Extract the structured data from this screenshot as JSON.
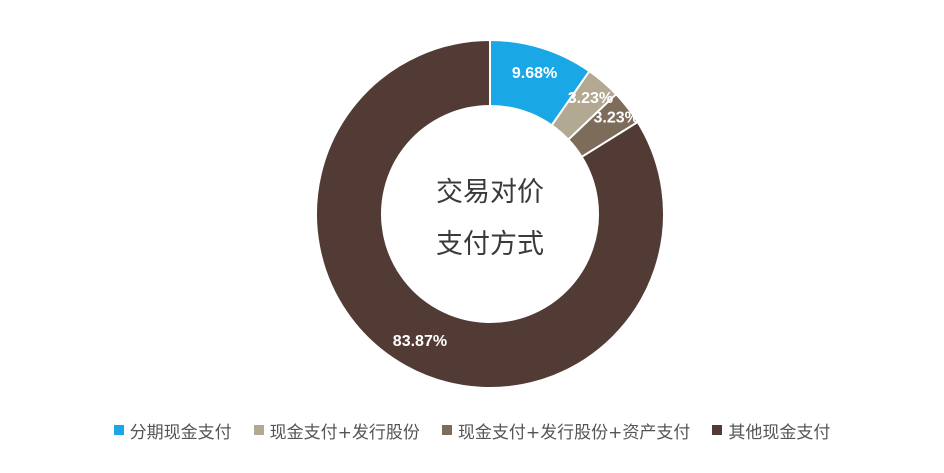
{
  "chart_data": {
    "type": "pie",
    "donut": true,
    "center_text": [
      "交易对价",
      "支付方式"
    ],
    "series": [
      {
        "name": "分期现金支付",
        "value": 9.68,
        "label": "9.68%",
        "color": "#1aa7e6"
      },
      {
        "name": "现金支付+发行股份",
        "value": 3.23,
        "label": "3.23%",
        "color": "#b3a891"
      },
      {
        "name": "现金支付+发行股份+资产支付",
        "value": 3.23,
        "label": "3.23%",
        "color": "#7d6c5a"
      },
      {
        "name": "其他现金支付",
        "value": 83.87,
        "label": "83.87%",
        "color": "#523b35"
      }
    ],
    "legend_position": "bottom"
  }
}
